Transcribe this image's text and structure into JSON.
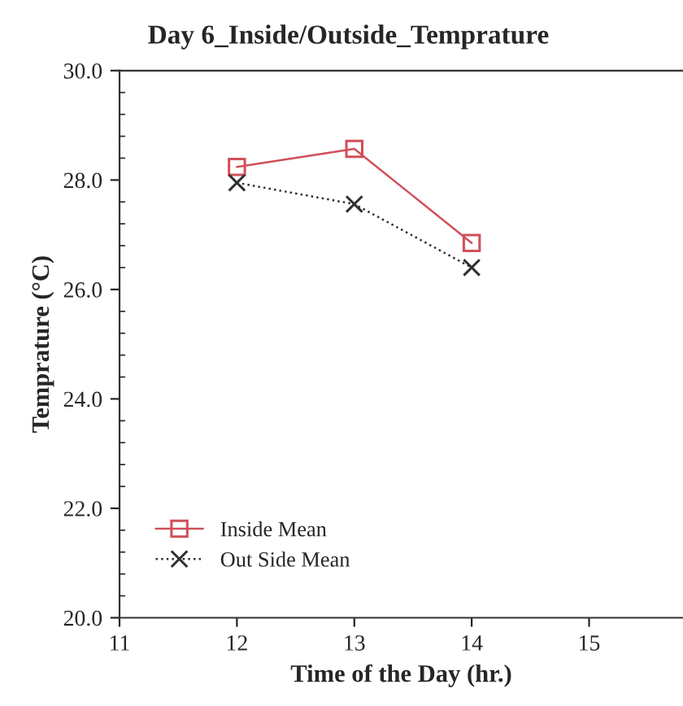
{
  "chart_data": {
    "type": "line",
    "title": "Day 6_Inside/Outside_Temprature",
    "xlabel": "Time of the Day (hr.)",
    "ylabel": "Temprature (°C)",
    "x": [
      12,
      13,
      14
    ],
    "series": [
      {
        "name": "Inside Mean",
        "color": "#d0505a",
        "values": [
          28.24,
          28.57,
          26.85
        ],
        "marker": "square",
        "line_style": "solid"
      },
      {
        "name": "Out Side Mean",
        "color": "#303030",
        "values": [
          27.95,
          27.56,
          26.4
        ],
        "marker": "cross",
        "line_style": "dotted"
      }
    ],
    "xlim": [
      11,
      15.8
    ],
    "xticks": [
      11,
      12,
      13,
      14,
      15
    ],
    "ylim": [
      20,
      30
    ],
    "yticks": [
      {
        "value": 20,
        "label": "20.0"
      },
      {
        "value": 20.4,
        "label": null
      },
      {
        "value": 20.8,
        "label": null
      },
      {
        "value": 21.2,
        "label": null
      },
      {
        "value": 21.6,
        "label": null
      },
      {
        "value": 22,
        "label": "22.0"
      },
      {
        "value": 22.4,
        "label": null
      },
      {
        "value": 22.8,
        "label": null
      },
      {
        "value": 23.2,
        "label": null
      },
      {
        "value": 23.6,
        "label": null
      },
      {
        "value": 24,
        "label": "24.0"
      },
      {
        "value": 24.4,
        "label": null
      },
      {
        "value": 24.8,
        "label": null
      },
      {
        "value": 25.2,
        "label": null
      },
      {
        "value": 25.6,
        "label": null
      },
      {
        "value": 26,
        "label": "26.0"
      },
      {
        "value": 26.4,
        "label": null
      },
      {
        "value": 26.8,
        "label": null
      },
      {
        "value": 27.2,
        "label": null
      },
      {
        "value": 27.6,
        "label": null
      },
      {
        "value": 28,
        "label": "28.0"
      },
      {
        "value": 28.4,
        "label": null
      },
      {
        "value": 28.8,
        "label": null
      },
      {
        "value": 29.2,
        "label": null
      },
      {
        "value": 29.6,
        "label": null
      },
      {
        "value": 30,
        "label": "30.0"
      }
    ],
    "grid": false,
    "legend": "bottom left"
  }
}
